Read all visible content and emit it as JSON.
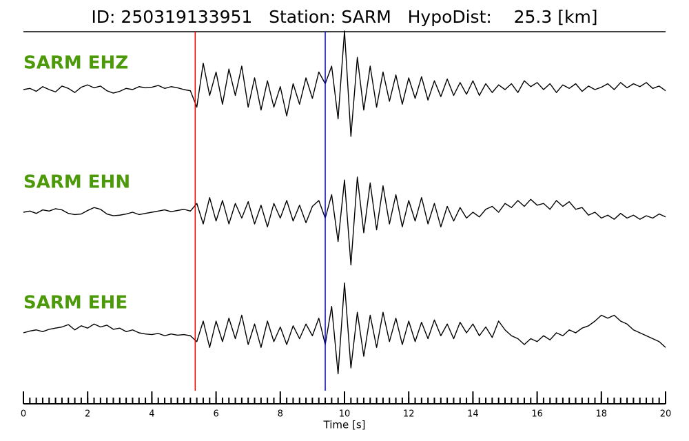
{
  "chart_data": {
    "type": "line",
    "title": "ID: 250319133951   Station: SARM   HypoDist:    25.3 [km]",
    "xlabel": "Time [s]",
    "xlim": [
      0,
      20
    ],
    "ylim": [
      -1,
      1
    ],
    "xticks": [
      0,
      2,
      4,
      6,
      8,
      10,
      12,
      14,
      16,
      18,
      20
    ],
    "xminorticks": [
      0,
      0.2,
      0.4,
      0.6,
      0.8,
      1,
      1.2,
      1.4,
      1.6,
      1.8,
      2,
      2.2,
      2.4,
      2.6,
      2.8,
      3,
      3.2,
      3.4,
      3.6,
      3.8,
      4,
      4.2,
      4.4,
      4.6,
      4.8,
      5,
      5.2,
      5.4,
      5.6,
      5.8,
      6,
      6.2,
      6.4,
      6.6,
      6.8,
      7,
      7.2,
      7.4,
      7.6,
      7.8,
      8,
      8.2,
      8.4,
      8.6,
      8.8,
      9,
      9.2,
      9.4,
      9.6,
      9.8,
      10,
      10.2,
      10.4,
      10.6,
      10.8,
      11,
      11.2,
      11.4,
      11.6,
      11.8,
      12,
      12.2,
      12.4,
      12.6,
      12.8,
      13,
      13.2,
      13.4,
      13.6,
      13.8,
      14,
      14.2,
      14.4,
      14.6,
      14.8,
      15,
      15.2,
      15.4,
      15.6,
      15.8,
      16,
      16.2,
      16.4,
      16.6,
      16.8,
      17,
      17.2,
      17.4,
      17.6,
      17.8,
      18,
      18.2,
      18.4,
      18.6,
      18.8,
      19,
      19.2,
      19.4,
      19.6,
      19.8,
      20
    ],
    "x": [
      0,
      0.2,
      0.4,
      0.6,
      0.8,
      1,
      1.2,
      1.4,
      1.6,
      1.8,
      2,
      2.2,
      2.4,
      2.6,
      2.8,
      3,
      3.2,
      3.4,
      3.6,
      3.8,
      4,
      4.2,
      4.4,
      4.6,
      4.8,
      5,
      5.2,
      5.4,
      5.6,
      5.8,
      6,
      6.2,
      6.4,
      6.6,
      6.8,
      7,
      7.2,
      7.4,
      7.6,
      7.8,
      8,
      8.2,
      8.4,
      8.6,
      8.8,
      9,
      9.2,
      9.4,
      9.6,
      9.8,
      10,
      10.2,
      10.4,
      10.6,
      10.8,
      11,
      11.2,
      11.4,
      11.6,
      11.8,
      12,
      12.2,
      12.4,
      12.6,
      12.8,
      13,
      13.2,
      13.4,
      13.6,
      13.8,
      14,
      14.2,
      14.4,
      14.6,
      14.8,
      15,
      15.2,
      15.4,
      15.6,
      15.8,
      16,
      16.2,
      16.4,
      16.6,
      16.8,
      17,
      17.2,
      17.4,
      17.6,
      17.8,
      18,
      18.2,
      18.4,
      18.6,
      18.8,
      19,
      19.2,
      19.4,
      19.6,
      19.8,
      20
    ],
    "picks": [
      {
        "x": 5.35,
        "color": "#ff0000"
      },
      {
        "x": 9.4,
        "color": "#0000ff"
      }
    ],
    "series": [
      {
        "name": "SARM EHZ",
        "color": "#000000",
        "values": [
          0.0,
          0.02,
          -0.03,
          0.05,
          0.0,
          -0.04,
          0.06,
          0.02,
          -0.05,
          0.04,
          0.08,
          0.03,
          0.06,
          -0.02,
          -0.06,
          -0.03,
          0.02,
          0.0,
          0.05,
          0.03,
          0.04,
          0.07,
          0.02,
          0.05,
          0.03,
          0.0,
          -0.02,
          -0.3,
          0.45,
          -0.1,
          0.3,
          -0.25,
          0.35,
          -0.1,
          0.4,
          -0.3,
          0.2,
          -0.35,
          0.15,
          -0.3,
          0.05,
          -0.45,
          0.1,
          -0.25,
          0.2,
          -0.15,
          0.3,
          0.1,
          0.4,
          -0.5,
          1.0,
          -0.8,
          0.55,
          -0.35,
          0.4,
          -0.3,
          0.3,
          -0.2,
          0.25,
          -0.25,
          0.2,
          -0.15,
          0.22,
          -0.18,
          0.15,
          -0.12,
          0.18,
          -0.1,
          0.12,
          -0.08,
          0.15,
          -0.1,
          0.1,
          -0.05,
          0.08,
          0.0,
          0.1,
          -0.05,
          0.15,
          0.05,
          0.12,
          0.0,
          0.1,
          -0.05,
          0.08,
          0.02,
          0.1,
          -0.03,
          0.06,
          0.0,
          0.04,
          0.1,
          0.0,
          0.12,
          0.03,
          0.1,
          0.05,
          0.12,
          0.02,
          0.06,
          -0.02
        ]
      },
      {
        "name": "SARM EHN",
        "color": "#000000",
        "values": [
          0.0,
          0.02,
          -0.02,
          0.04,
          0.02,
          0.06,
          0.04,
          -0.02,
          -0.04,
          -0.03,
          0.03,
          0.08,
          0.05,
          -0.03,
          -0.06,
          -0.05,
          -0.03,
          0.0,
          -0.04,
          -0.02,
          0.0,
          0.02,
          0.04,
          0.01,
          0.03,
          0.05,
          0.02,
          0.15,
          -0.2,
          0.25,
          -0.15,
          0.2,
          -0.2,
          0.15,
          -0.1,
          0.18,
          -0.2,
          0.12,
          -0.25,
          0.15,
          -0.1,
          0.2,
          -0.15,
          0.12,
          -0.18,
          0.1,
          0.2,
          -0.1,
          0.3,
          -0.5,
          0.55,
          -0.9,
          0.6,
          -0.35,
          0.5,
          -0.3,
          0.45,
          -0.2,
          0.3,
          -0.25,
          0.2,
          -0.15,
          0.25,
          -0.2,
          0.15,
          -0.25,
          0.1,
          -0.15,
          0.08,
          -0.1,
          0.0,
          -0.08,
          0.05,
          0.1,
          0.0,
          0.15,
          0.08,
          0.2,
          0.1,
          0.22,
          0.12,
          0.15,
          0.05,
          0.2,
          0.1,
          0.18,
          0.05,
          0.08,
          -0.05,
          0.0,
          -0.1,
          -0.05,
          -0.12,
          -0.02,
          -0.1,
          -0.05,
          -0.12,
          -0.06,
          -0.1,
          -0.03,
          -0.08
        ]
      },
      {
        "name": "SARM EHE",
        "color": "#000000",
        "values": [
          0.0,
          0.03,
          0.05,
          0.02,
          0.06,
          0.08,
          0.1,
          0.14,
          0.05,
          0.12,
          0.08,
          0.15,
          0.1,
          0.13,
          0.06,
          0.08,
          0.02,
          0.05,
          0.0,
          -0.02,
          -0.03,
          -0.01,
          -0.05,
          -0.02,
          -0.04,
          -0.03,
          -0.05,
          -0.15,
          0.2,
          -0.25,
          0.2,
          -0.15,
          0.25,
          -0.1,
          0.3,
          -0.2,
          0.15,
          -0.25,
          0.2,
          -0.15,
          0.1,
          -0.2,
          0.12,
          -0.1,
          0.15,
          -0.05,
          0.25,
          -0.2,
          0.45,
          -0.7,
          0.85,
          -0.6,
          0.35,
          -0.4,
          0.3,
          -0.25,
          0.35,
          -0.15,
          0.25,
          -0.2,
          0.2,
          -0.15,
          0.18,
          -0.1,
          0.22,
          -0.05,
          0.15,
          -0.1,
          0.18,
          0.0,
          0.15,
          -0.05,
          0.1,
          -0.08,
          0.2,
          0.05,
          -0.05,
          -0.1,
          -0.2,
          -0.1,
          -0.15,
          -0.05,
          -0.12,
          0.0,
          -0.05,
          0.05,
          0.0,
          0.08,
          0.12,
          0.2,
          0.3,
          0.25,
          0.3,
          0.2,
          0.15,
          0.05,
          0.0,
          -0.05,
          -0.1,
          -0.15,
          -0.25
        ]
      }
    ]
  }
}
